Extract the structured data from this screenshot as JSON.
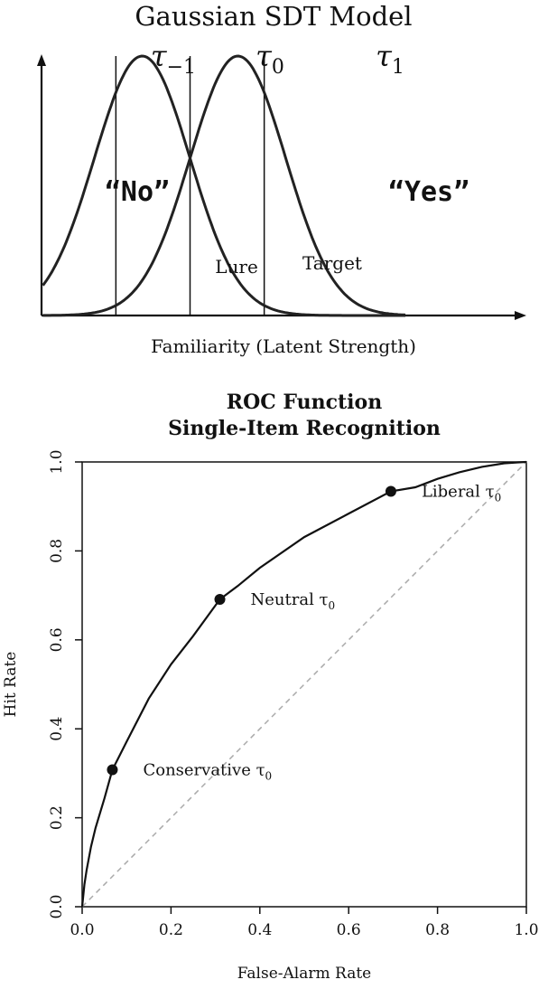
{
  "chart_data": [
    {
      "type": "line",
      "title": "Gaussian SDT Model",
      "xlabel": "Familiarity (Latent Strength)",
      "ylabel": "",
      "series": [
        {
          "name": "Lure",
          "mean": 0.0,
          "sd": 1.0
        },
        {
          "name": "Target",
          "mean": 2.0,
          "sd": 1.0
        }
      ],
      "criteria": [
        {
          "label": "τ−1",
          "label_base": "τ",
          "label_sub": "−1",
          "value": -0.55
        },
        {
          "label": "τ0",
          "label_base": "τ",
          "label_sub": "0",
          "value": 1.0
        },
        {
          "label": "τ1",
          "label_base": "τ",
          "label_sub": "1",
          "value": 2.55
        }
      ],
      "response_labels": {
        "left": "“No”",
        "right": "“Yes”"
      },
      "xlim": [
        -3.5,
        5.5
      ],
      "ylim": [
        0,
        1
      ],
      "axes": "arrows, no ticks"
    },
    {
      "type": "line",
      "title": "ROC Function",
      "subtitle": "Single-Item Recognition",
      "xlabel": "False-Alarm Rate",
      "ylabel": "Hit Rate",
      "xlim": [
        0,
        1
      ],
      "ylim": [
        0,
        1
      ],
      "xticks": [
        "0.0",
        "0.2",
        "0.4",
        "0.6",
        "0.8",
        "1.0"
      ],
      "yticks": [
        "0.0",
        "0.2",
        "0.4",
        "0.6",
        "0.8",
        "1.0"
      ],
      "dprime": 1.0,
      "curve": {
        "x": [
          0.0,
          0.005,
          0.01,
          0.02,
          0.03,
          0.05,
          0.068,
          0.1,
          0.15,
          0.2,
          0.25,
          0.31,
          0.35,
          0.4,
          0.5,
          0.6,
          0.695,
          0.75,
          0.8,
          0.85,
          0.9,
          0.95,
          0.98,
          1.0
        ],
        "y": [
          0.0,
          0.05,
          0.082,
          0.135,
          0.177,
          0.243,
          0.308,
          0.371,
          0.468,
          0.545,
          0.609,
          0.691,
          0.721,
          0.762,
          0.831,
          0.884,
          0.934,
          0.943,
          0.962,
          0.977,
          0.989,
          0.997,
          0.999,
          1.0
        ]
      },
      "chance_line": {
        "x": [
          0,
          1
        ],
        "y": [
          0,
          1
        ],
        "style": "dashed",
        "color": "#aaaaaa"
      },
      "points": [
        {
          "label": "Conservative",
          "label_base": "Conservative τ",
          "label_sub": "0",
          "x": 0.068,
          "y": 0.308
        },
        {
          "label": "Neutral",
          "label_base": "Neutral τ",
          "label_sub": "0",
          "x": 0.31,
          "y": 0.691
        },
        {
          "label": "Liberal",
          "label_base": "Liberal τ",
          "label_sub": "0",
          "x": 0.695,
          "y": 0.934
        }
      ]
    }
  ]
}
